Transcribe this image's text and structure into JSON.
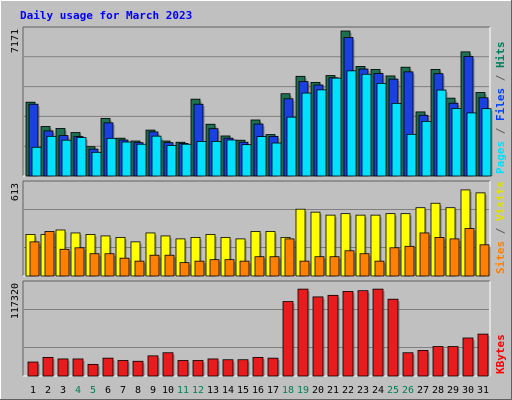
{
  "chart_data": [
    {
      "type": "bar",
      "panel": "hits-files-pages",
      "title": "Daily usage for March 2023",
      "ymax_label": "7171",
      "ylim": [
        0,
        7171
      ],
      "grid": true,
      "legend_side": "right",
      "legend": [
        {
          "text": "Pages",
          "color": "#00e0ff"
        },
        {
          "text": "/",
          "color": "#606060"
        },
        {
          "text": "Files",
          "color": "#0040ff"
        },
        {
          "text": "/",
          "color": "#606060"
        },
        {
          "text": "Hits",
          "color": "#00805c"
        }
      ],
      "categories": [
        "1",
        "2",
        "3",
        "4",
        "5",
        "6",
        "7",
        "8",
        "9",
        "10",
        "11",
        "12",
        "13",
        "14",
        "15",
        "16",
        "17",
        "18",
        "19",
        "20",
        "21",
        "22",
        "23",
        "24",
        "25",
        "26",
        "27",
        "28",
        "29",
        "30",
        "31"
      ],
      "series": [
        {
          "name": "Hits",
          "color": "#1f7050",
          "values": [
            3650,
            2450,
            2350,
            2150,
            1450,
            2850,
            1870,
            1730,
            2270,
            1730,
            1670,
            3800,
            2560,
            1980,
            1770,
            2770,
            2050,
            4070,
            4930,
            4630,
            4970,
            7171,
            5420,
            5270,
            4950,
            5380,
            3170,
            5270,
            3850,
            6140,
            4130
          ]
        },
        {
          "name": "Files",
          "color": "#1a40e0",
          "values": [
            3550,
            2230,
            2000,
            1950,
            1330,
            2630,
            1780,
            1650,
            2180,
            1650,
            1610,
            3550,
            2340,
            1870,
            1670,
            2570,
            1960,
            3820,
            4670,
            4500,
            4860,
            6850,
            5290,
            5070,
            4790,
            5150,
            3000,
            5060,
            3600,
            5910,
            3870
          ]
        },
        {
          "name": "Pages",
          "color": "#00e0ff",
          "values": [
            1420,
            1960,
            1770,
            1900,
            1170,
            1860,
            1680,
            1570,
            1970,
            1510,
            1570,
            1710,
            1710,
            1780,
            1550,
            1950,
            1630,
            2910,
            4100,
            4260,
            4840,
            5200,
            5030,
            4580,
            3590,
            2060,
            2700,
            4250,
            3340,
            3120,
            3330
          ]
        }
      ]
    },
    {
      "type": "bar",
      "panel": "visits-sites",
      "ymax_label": "613",
      "ylim": [
        0,
        613
      ],
      "legend_side": "right",
      "legend": [
        {
          "text": "Sites",
          "color": "#ff8000"
        },
        {
          "text": "/",
          "color": "#606060"
        },
        {
          "text": "Visits",
          "color": "#e0e000"
        }
      ],
      "categories": [
        "1",
        "2",
        "3",
        "4",
        "5",
        "6",
        "7",
        "8",
        "9",
        "10",
        "11",
        "12",
        "13",
        "14",
        "15",
        "16",
        "17",
        "18",
        "19",
        "20",
        "21",
        "22",
        "23",
        "24",
        "25",
        "26",
        "27",
        "28",
        "29",
        "30",
        "31"
      ],
      "series": [
        {
          "name": "Visits",
          "color": "#ffff00",
          "values": [
            280,
            280,
            310,
            290,
            280,
            270,
            260,
            230,
            290,
            270,
            250,
            260,
            280,
            260,
            250,
            300,
            300,
            260,
            450,
            430,
            410,
            420,
            410,
            410,
            420,
            420,
            460,
            490,
            460,
            580,
            560
          ]
        },
        {
          "name": "Sites",
          "color": "#ff8000",
          "values": [
            230,
            300,
            180,
            190,
            150,
            150,
            120,
            100,
            140,
            140,
            90,
            100,
            110,
            110,
            100,
            130,
            130,
            250,
            100,
            130,
            130,
            170,
            150,
            100,
            190,
            200,
            290,
            260,
            250,
            320,
            210
          ]
        }
      ]
    },
    {
      "type": "bar",
      "panel": "kbytes",
      "ymax_label": "117320",
      "ylim": [
        0,
        117320
      ],
      "legend_side": "right",
      "legend": [
        {
          "text": "KBytes",
          "color": "#ff0000"
        }
      ],
      "categories": [
        "1",
        "2",
        "3",
        "4",
        "5",
        "6",
        "7",
        "8",
        "9",
        "10",
        "11",
        "12",
        "13",
        "14",
        "15",
        "16",
        "17",
        "18",
        "19",
        "20",
        "21",
        "22",
        "23",
        "24",
        "25",
        "26",
        "27",
        "28",
        "29",
        "30",
        "31"
      ],
      "series": [
        {
          "name": "KBytes",
          "color": "#e81c1c",
          "values": [
            18000,
            24000,
            22000,
            22000,
            15000,
            23000,
            20000,
            19000,
            26000,
            30000,
            20000,
            20000,
            22000,
            21000,
            21000,
            24000,
            23000,
            96000,
            112000,
            102000,
            104000,
            109000,
            110000,
            112000,
            99000,
            30000,
            33000,
            38000,
            38000,
            49000,
            54000
          ]
        }
      ]
    }
  ],
  "weekend_days": [
    "4",
    "5",
    "11",
    "12",
    "18",
    "19",
    "25",
    "26"
  ],
  "colors": {
    "background": "#c0c0c0",
    "title": "#0000ff",
    "panel_bg": "#c0c0c0",
    "grid": "#808080",
    "weekend_label": "#007f50",
    "weekday_label": "#000000"
  }
}
